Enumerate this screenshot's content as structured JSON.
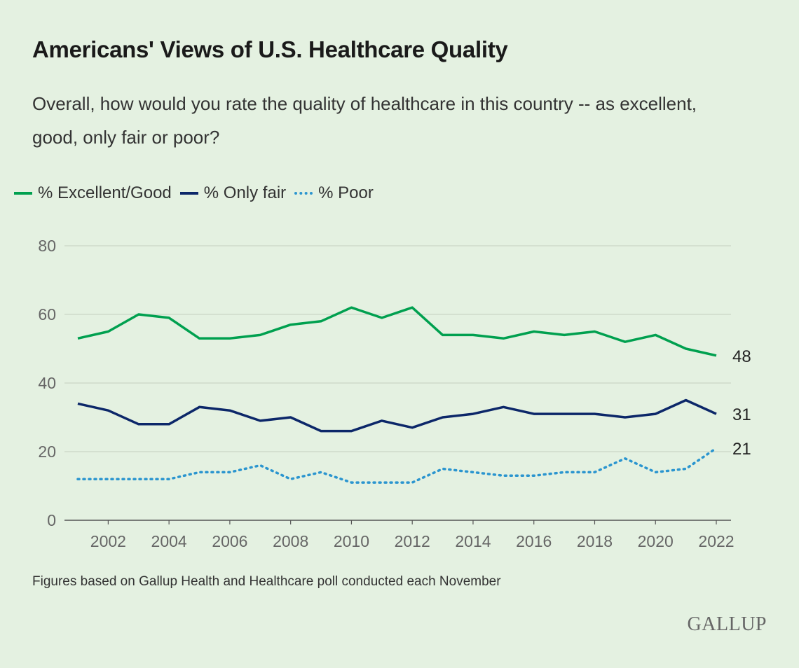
{
  "chart_data": {
    "type": "line",
    "title": "Americans' Views of U.S. Healthcare Quality",
    "subtitle": "Overall, how would you rate the quality of healthcare in this country -- as excellent, good, only fair or poor?",
    "note": "Figures based on Gallup Health and Healthcare poll conducted each November",
    "source_logo": "GALLUP",
    "legend_position": "top-left",
    "grid": true,
    "ylim": [
      0,
      80
    ],
    "yticks": [
      0,
      20,
      40,
      60,
      80
    ],
    "xticks": [
      2002,
      2004,
      2006,
      2008,
      2010,
      2012,
      2014,
      2016,
      2018,
      2020,
      2022
    ],
    "x": [
      2001,
      2002,
      2003,
      2004,
      2005,
      2006,
      2007,
      2008,
      2009,
      2010,
      2011,
      2012,
      2013,
      2014,
      2015,
      2016,
      2017,
      2018,
      2019,
      2020,
      2021,
      2022
    ],
    "series": [
      {
        "name": "% Excellent/Good",
        "color": "#00a04f",
        "style": "solid",
        "values": [
          53,
          55,
          60,
          59,
          53,
          53,
          54,
          57,
          58,
          62,
          59,
          62,
          54,
          54,
          53,
          55,
          54,
          55,
          52,
          54,
          50,
          48
        ],
        "end_label": "48"
      },
      {
        "name": "% Only fair",
        "color": "#0c2769",
        "style": "solid",
        "values": [
          34,
          32,
          28,
          28,
          33,
          32,
          29,
          30,
          26,
          26,
          29,
          27,
          30,
          31,
          33,
          31,
          31,
          31,
          30,
          31,
          35,
          31
        ],
        "end_label": "31"
      },
      {
        "name": "% Poor",
        "color": "#2b95cf",
        "style": "dotted",
        "values": [
          12,
          12,
          12,
          12,
          14,
          14,
          16,
          12,
          14,
          11,
          11,
          11,
          15,
          14,
          13,
          13,
          14,
          14,
          18,
          14,
          15,
          21
        ],
        "end_label": "21"
      }
    ]
  }
}
